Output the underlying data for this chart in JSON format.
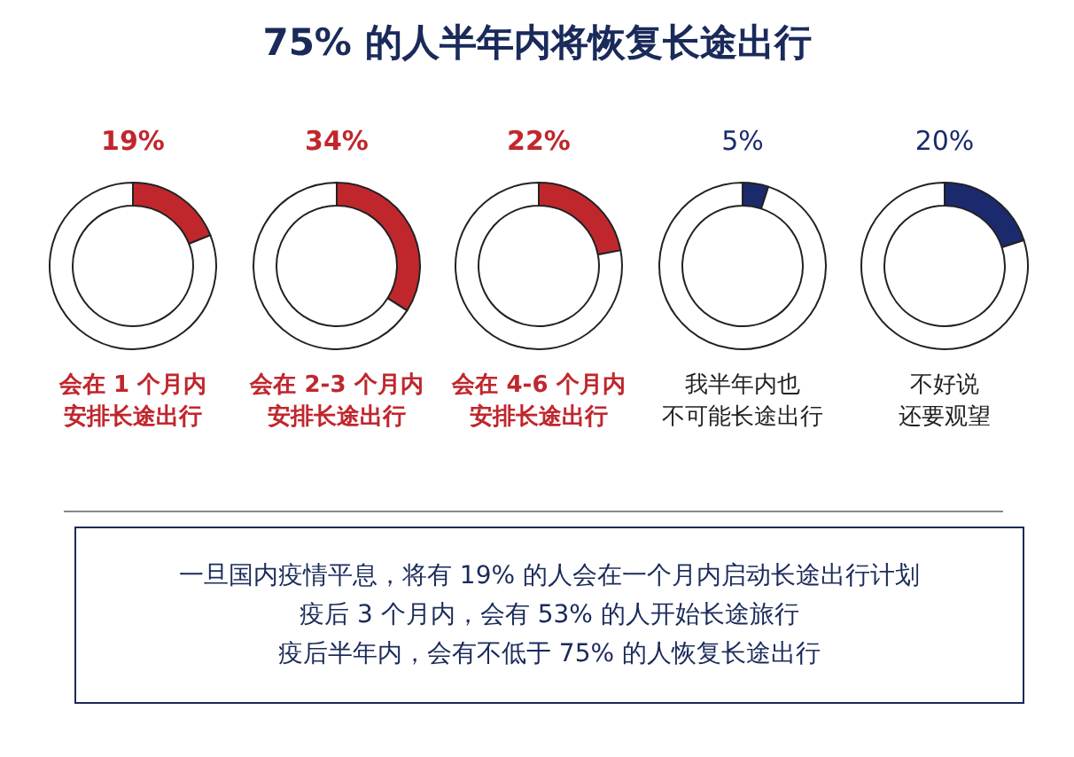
{
  "chart_data": [
    {
      "type": "other",
      "title": "75% 的人半年内将恢复长途出行"
    },
    {
      "type": "donut",
      "title": "会在 1 个月内",
      "subtitle": "安排长途出行",
      "categories": [
        null,
        null
      ],
      "values": [
        19,
        81
      ],
      "colors": [
        "#c0272d",
        "#ffffff"
      ],
      "value_labels": [
        "19%",
        null
      ]
    },
    {
      "type": "donut",
      "title": "会在 2-3 个月内",
      "subtitle": "安排长途出行",
      "categories": [
        null,
        null
      ],
      "values": [
        34,
        66
      ],
      "colors": [
        "#c0272d",
        "#ffffff"
      ],
      "value_labels": [
        "34%",
        null
      ]
    },
    {
      "type": "donut",
      "title": "会在 4-6 个月内",
      "subtitle": "安排长途出行",
      "categories": [
        null,
        null
      ],
      "values": [
        22,
        78
      ],
      "colors": [
        "#c0272d",
        "#ffffff"
      ],
      "value_labels": [
        "22%",
        null
      ]
    },
    {
      "type": "donut",
      "title": "我半年内也",
      "subtitle": "不可能长途出行",
      "categories": [
        null,
        null
      ],
      "values": [
        5,
        95
      ],
      "colors": [
        "#1a2a6c",
        "#ffffff"
      ],
      "value_labels": [
        "5%",
        null
      ]
    },
    {
      "type": "donut",
      "title": "不好说",
      "subtitle": "还要观望",
      "categories": [
        null,
        null
      ],
      "values": [
        20,
        80
      ],
      "colors": [
        "#1a2a6c",
        "#ffffff"
      ],
      "value_labels": [
        "20%",
        null
      ]
    },
    {
      "type": "other",
      "annotations": [
        "一旦国内疫情平息，将有 19% 的人会在一个月内启动长途出行计划",
        "疫后 3 个月内，会有 53% 的人开始长途旅行",
        "疫后半年内，会有不低于 75% 的人恢复长途出行"
      ]
    }
  ]
}
